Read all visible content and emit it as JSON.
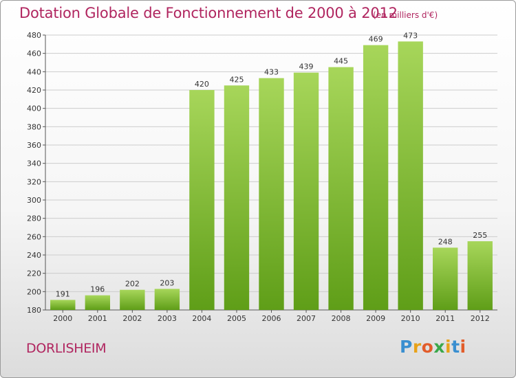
{
  "title": "Dotation Globale de Fonctionnement de 2000 à 2012",
  "unit": "(en milliers d'€)",
  "commune": "DORLISHEIM",
  "logo": {
    "text": "Proxiti",
    "colors": [
      "#3a8fd0",
      "#e8a21a",
      "#e25c2a",
      "#3ba84a",
      "#e8a21a",
      "#3a8fd0",
      "#e25c2a"
    ]
  },
  "colors": {
    "bar_light": "#a7d65a",
    "bar_dark": "#5f9e18",
    "title": "#b0255f",
    "grid": "#cccccc"
  },
  "chart_data": {
    "type": "bar",
    "categories": [
      "2000",
      "2001",
      "2002",
      "2003",
      "2004",
      "2005",
      "2006",
      "2007",
      "2008",
      "2009",
      "2010",
      "2011",
      "2012"
    ],
    "values": [
      191,
      196,
      202,
      203,
      420,
      425,
      433,
      439,
      445,
      469,
      473,
      248,
      255
    ],
    "title": "Dotation Globale de Fonctionnement de 2000 à 2012",
    "xlabel": "",
    "ylabel": "",
    "ylim": [
      180,
      480
    ],
    "yticks": [
      180,
      200,
      220,
      240,
      260,
      280,
      300,
      320,
      340,
      360,
      380,
      400,
      420,
      440,
      460,
      480
    ],
    "grid": true
  }
}
